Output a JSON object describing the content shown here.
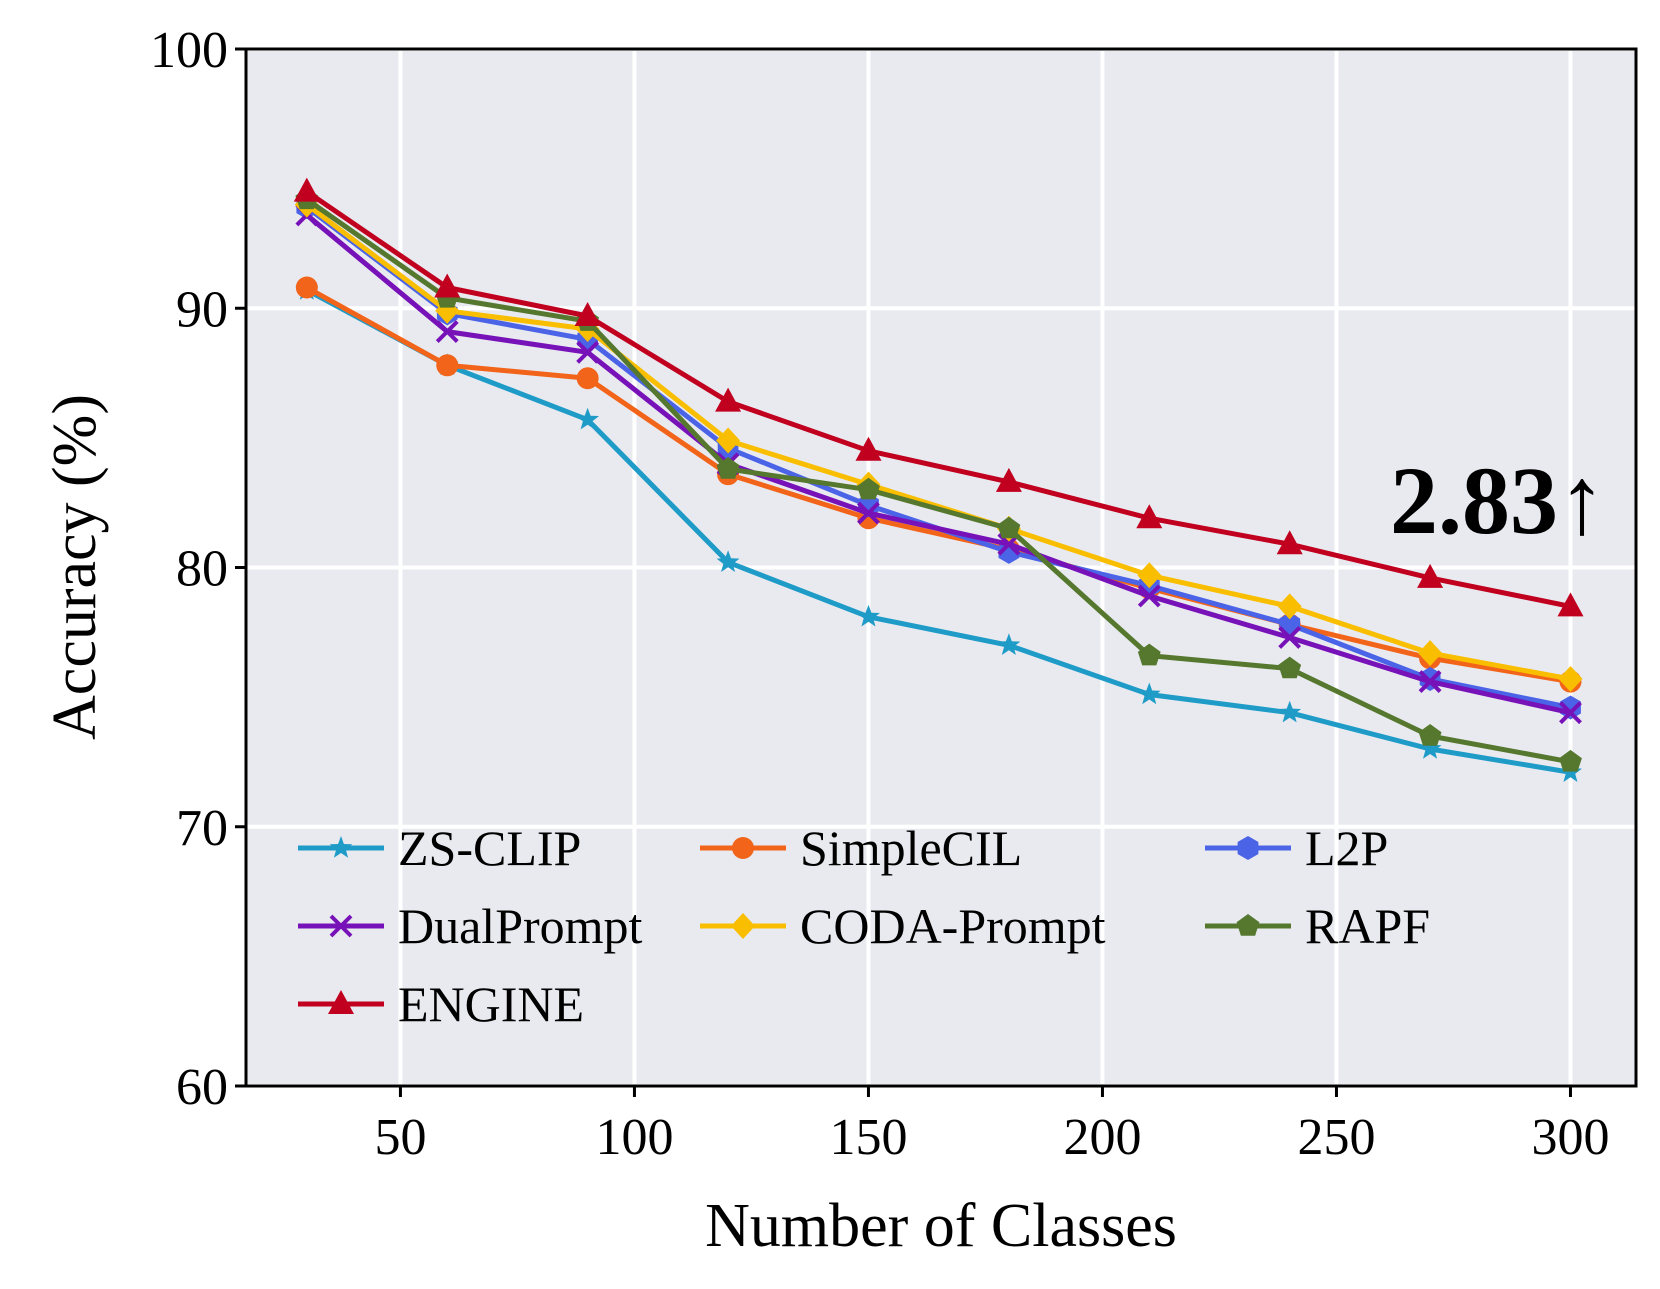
{
  "chart_data": {
    "type": "line",
    "title": "",
    "xlabel": "Number of Classes",
    "ylabel": "Accuracy (%)",
    "xlim": [
      17,
      314
    ],
    "ylim": [
      60,
      100
    ],
    "x_ticks": [
      50,
      100,
      150,
      200,
      250,
      300
    ],
    "y_ticks": [
      60,
      70,
      80,
      90,
      100
    ],
    "grid": true,
    "legend_position": "bottom-left",
    "legend_columns": 3,
    "annotation": "2.83↑",
    "x": [
      30,
      60,
      90,
      120,
      150,
      180,
      210,
      240,
      270,
      300
    ],
    "series": [
      {
        "name": "ZS-CLIP",
        "color": "#1f9bc7",
        "marker": "star",
        "values": [
          90.7,
          87.8,
          85.7,
          80.2,
          78.1,
          77.0,
          75.1,
          74.4,
          73.0,
          72.1
        ]
      },
      {
        "name": "SimpleCIL",
        "color": "#f26419",
        "marker": "circle",
        "values": [
          90.8,
          87.8,
          87.3,
          83.6,
          81.9,
          80.7,
          79.2,
          77.8,
          76.5,
          75.6
        ]
      },
      {
        "name": "L2P",
        "color": "#4a63e7",
        "marker": "hexagon",
        "values": [
          93.9,
          89.8,
          88.8,
          84.6,
          82.4,
          80.6,
          79.3,
          77.8,
          75.7,
          74.6
        ]
      },
      {
        "name": "DualPrompt",
        "color": "#7711b8",
        "marker": "x",
        "values": [
          93.6,
          89.1,
          88.3,
          84.0,
          82.1,
          80.9,
          78.9,
          77.3,
          75.6,
          74.4
        ]
      },
      {
        "name": "CODA-Prompt",
        "color": "#f9be00",
        "marker": "diamond",
        "values": [
          94.0,
          89.9,
          89.2,
          84.9,
          83.2,
          81.5,
          79.7,
          78.5,
          76.7,
          75.7
        ]
      },
      {
        "name": "RAPF",
        "color": "#55782e",
        "marker": "pentagon",
        "values": [
          94.2,
          90.4,
          89.5,
          83.8,
          83.0,
          81.5,
          76.6,
          76.1,
          73.5,
          72.5
        ]
      },
      {
        "name": "ENGINE",
        "color": "#c0001e",
        "marker": "triangle",
        "values": [
          94.5,
          90.8,
          89.7,
          86.4,
          84.5,
          83.3,
          81.9,
          80.9,
          79.6,
          78.5
        ]
      }
    ]
  }
}
